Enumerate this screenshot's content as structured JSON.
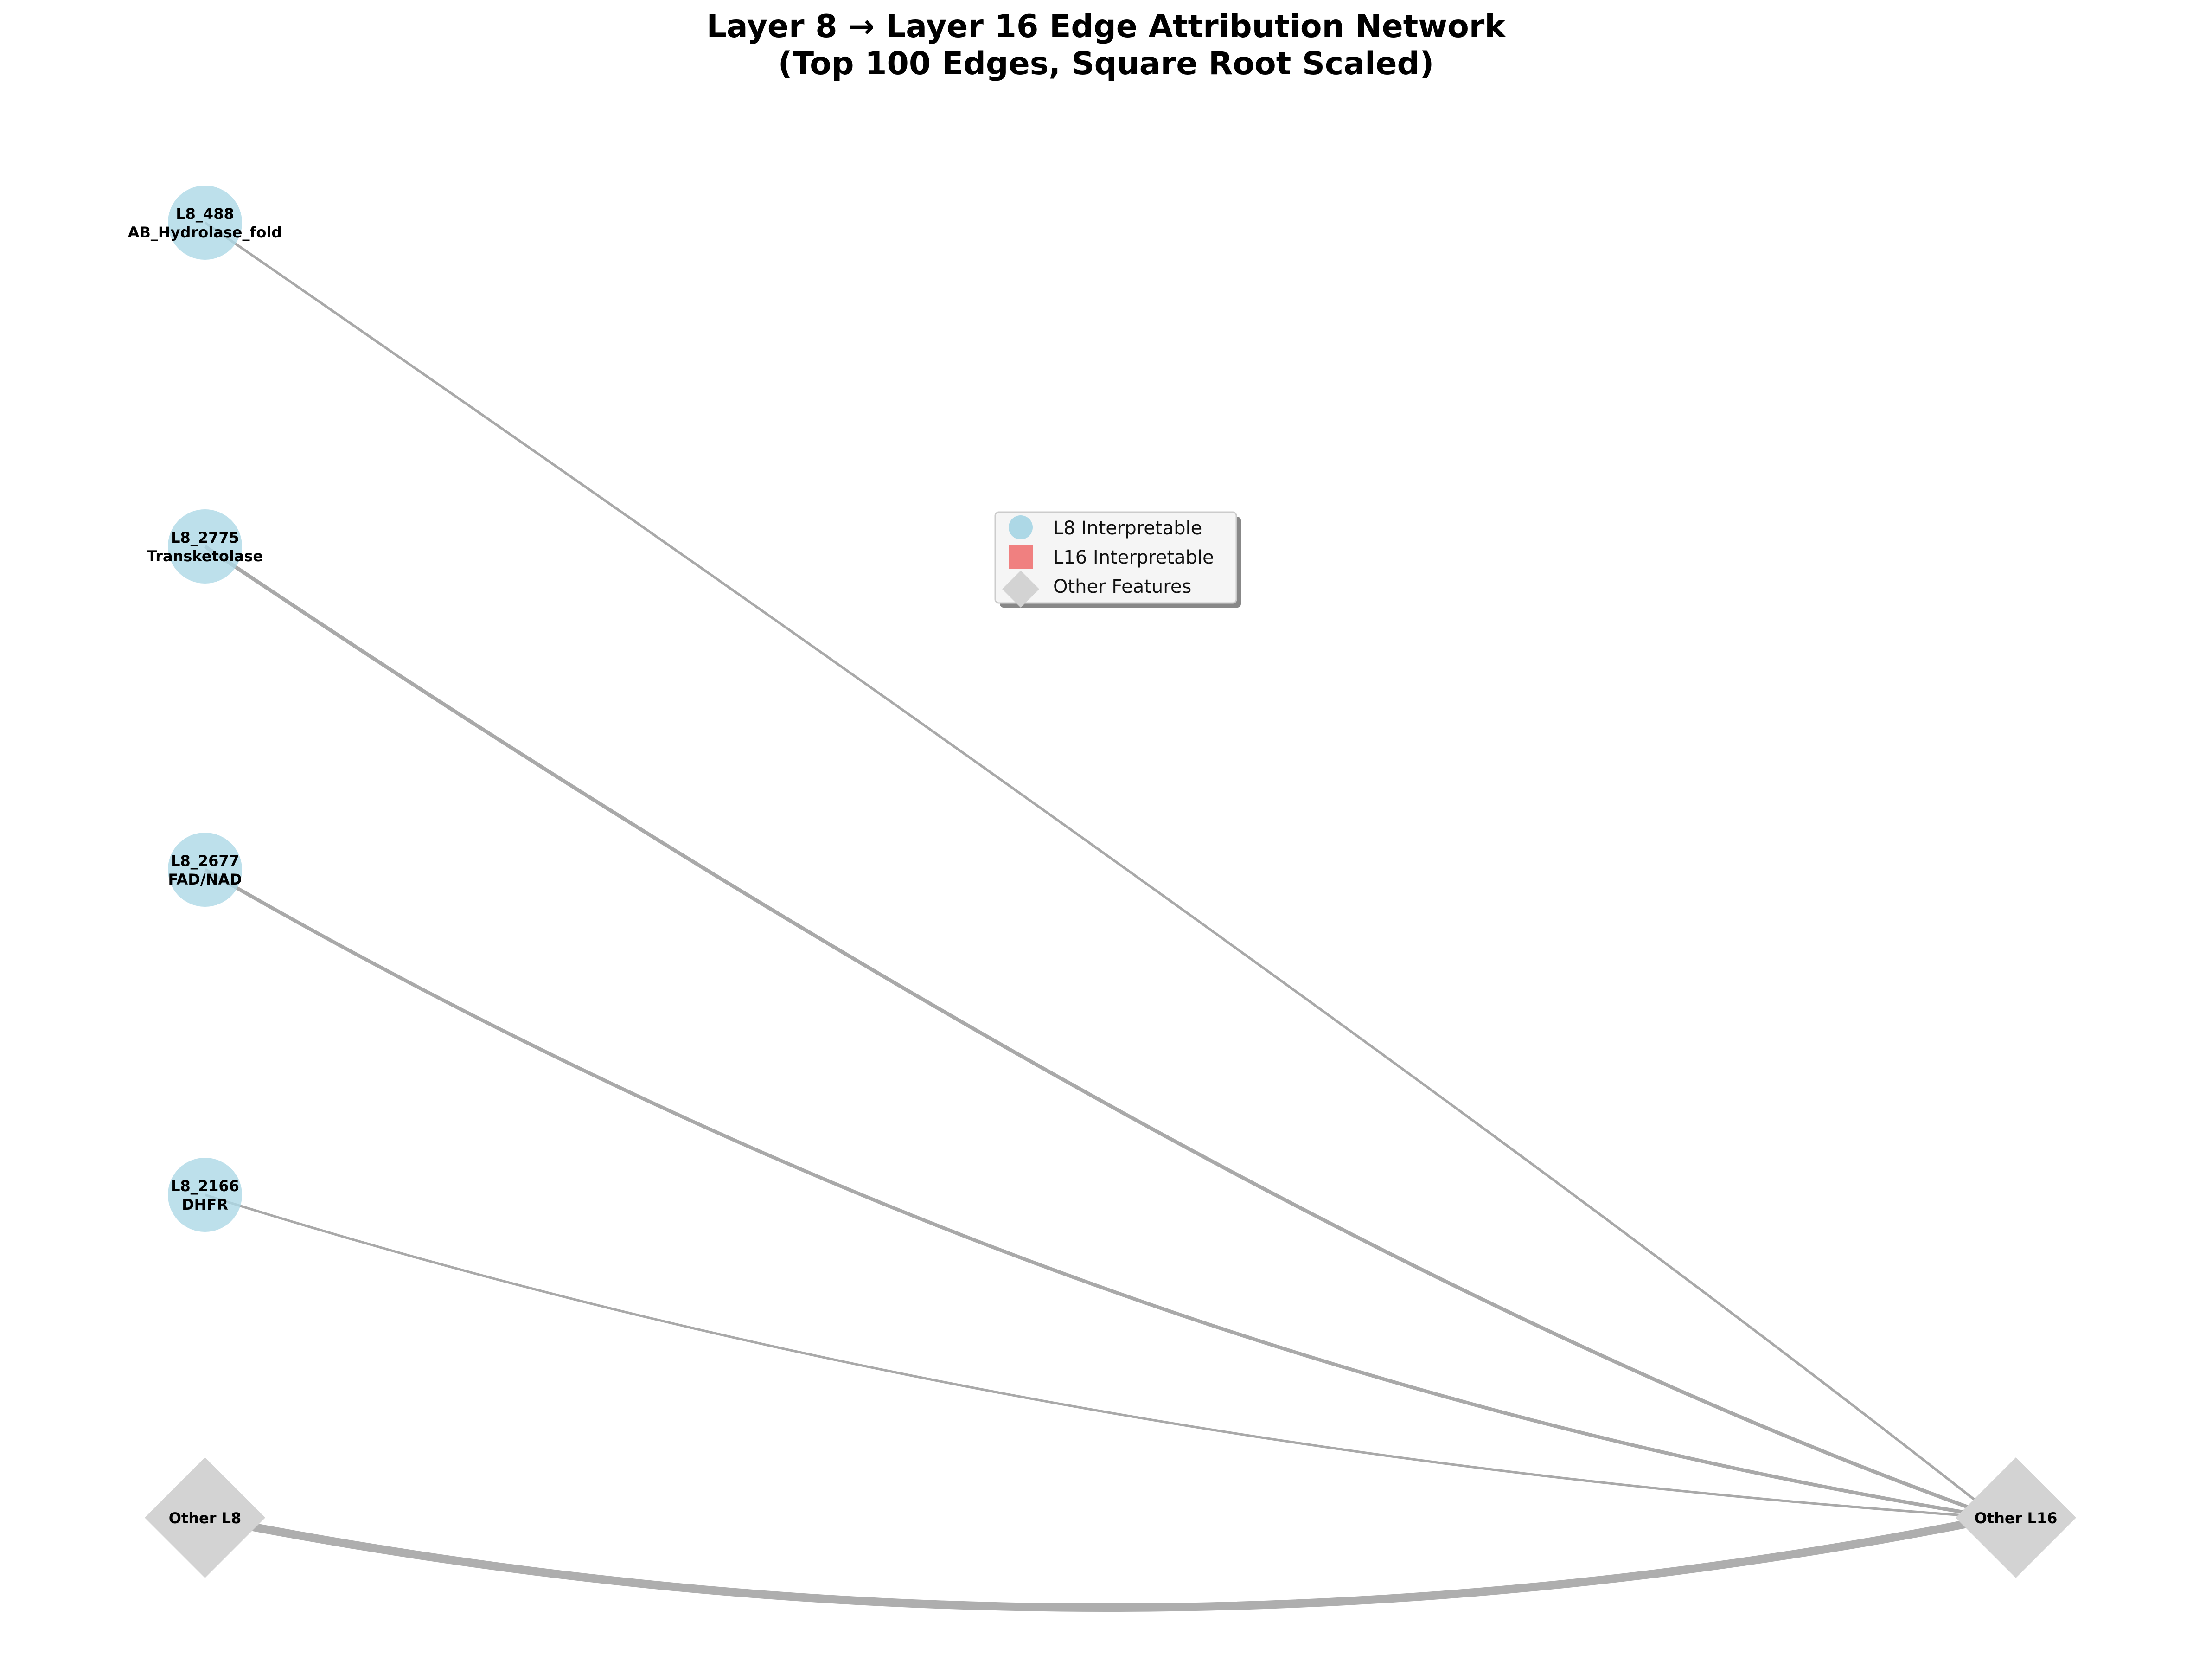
{
  "title": {
    "line1": "Layer 8 → Layer 16 Edge Attribution Network",
    "line2": "(Top 100 Edges, Square Root Scaled)"
  },
  "colors": {
    "l8_interpretable": "#add8e6",
    "l16_interpretable": "#f08080",
    "other_features": "#d3d3d3",
    "edge": "#a0a0a0"
  },
  "nodes": [
    {
      "id": "L8_488",
      "kind": "l8_interpretable",
      "line1": "L8_488",
      "line2": "AB_Hydrolase_fold"
    },
    {
      "id": "L8_2775",
      "kind": "l8_interpretable",
      "line1": "L8_2775",
      "line2": "Transketolase"
    },
    {
      "id": "L8_2677",
      "kind": "l8_interpretable",
      "line1": "L8_2677",
      "line2": "FAD/NAD"
    },
    {
      "id": "L8_2166",
      "kind": "l8_interpretable",
      "line1": "L8_2166",
      "line2": "DHFR"
    },
    {
      "id": "Other_L8",
      "kind": "other_features",
      "line1": "Other L8",
      "line2": ""
    },
    {
      "id": "Other_L16",
      "kind": "other_features",
      "line1": "Other L16",
      "line2": ""
    }
  ],
  "edges": [
    {
      "source": "L8_488",
      "target": "Other_L16",
      "relative_weight": 0.22
    },
    {
      "source": "L8_2775",
      "target": "Other_L16",
      "relative_weight": 0.38
    },
    {
      "source": "L8_2677",
      "target": "Other_L16",
      "relative_weight": 0.36
    },
    {
      "source": "L8_2166",
      "target": "Other_L16",
      "relative_weight": 0.2
    },
    {
      "source": "Other_L8",
      "target": "Other_L16",
      "relative_weight": 1.0
    }
  ],
  "legend": {
    "placement": "center",
    "items": [
      {
        "label": "L8 Interpretable",
        "shape": "circle",
        "color_key": "l8_interpretable"
      },
      {
        "label": "L16 Interpretable",
        "shape": "square",
        "color_key": "l16_interpretable"
      },
      {
        "label": "Other Features",
        "shape": "diamond",
        "color_key": "other_features"
      }
    ]
  }
}
